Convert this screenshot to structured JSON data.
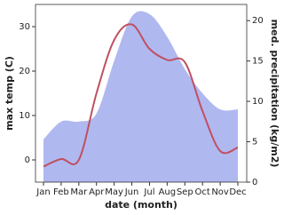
{
  "chart_data": {
    "type": "line",
    "x_label": "date (month)",
    "y_label": "max temp (C)",
    "y2_label": "med. precipitation (kg/m2)",
    "categories": [
      "Jan",
      "Feb",
      "Mar",
      "Apr",
      "May",
      "Jun",
      "Jul",
      "Aug",
      "Sep",
      "Oct",
      "Nov",
      "Dec"
    ],
    "series": [
      {
        "name": "med. precipitation",
        "style": "area",
        "color": "#b0b8f0",
        "axis": "y2",
        "values": [
          5.3,
          7.5,
          7.5,
          8.5,
          15,
          20.5,
          20.8,
          18,
          14,
          11,
          9,
          9
        ]
      },
      {
        "name": "max temp",
        "style": "line",
        "color": "#c05060",
        "values": [
          -1.5,
          0.2,
          0,
          15,
          27,
          30.5,
          25,
          22.5,
          22,
          11,
          2,
          2.8
        ]
      }
    ],
    "ylim": [
      -5,
      35
    ],
    "yticks": [
      0,
      10,
      20,
      30
    ],
    "y2lim": [
      0,
      22
    ],
    "y2ticks": [
      0,
      5,
      10,
      15,
      20
    ]
  }
}
